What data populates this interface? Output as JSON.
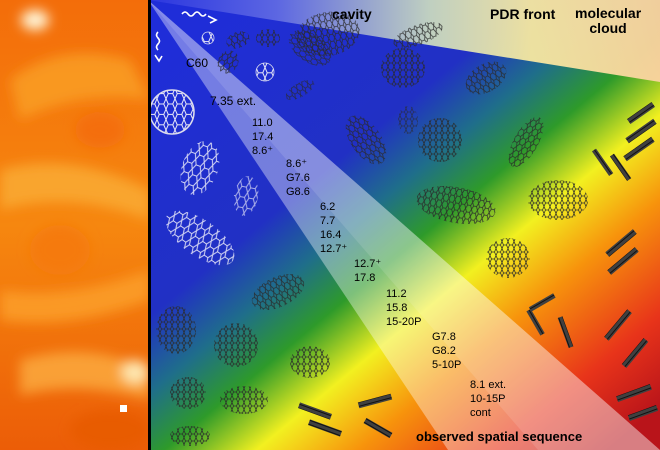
{
  "figure": {
    "headers": {
      "cavity": "cavity",
      "pdr_front": "PDR front",
      "molecular_cloud": "molecular\ncloud"
    },
    "footer": "observed spatial sequence",
    "species": {
      "c60": "C60",
      "ext_735": "7.35 ext."
    },
    "bands": [
      [
        "11.0",
        "17.4",
        "8.6⁺"
      ],
      [
        "8.6⁺",
        "G7.6",
        "G8.6"
      ],
      [
        "6.2",
        "7.7",
        "16.4",
        "12.7⁺"
      ],
      [
        "12.7⁺",
        "17.8"
      ],
      [
        "11.2",
        "15.8",
        "15-20P"
      ],
      [
        "G7.8",
        "G8.2",
        "5-10P"
      ],
      [
        "8.1 ext.",
        "10-15P",
        "cont"
      ]
    ],
    "colors": {
      "cavity_blue": "#1a2fe0",
      "green": "#2e9a2a",
      "yellow": "#f2f020",
      "orange": "#f7930c",
      "red": "#e01b12",
      "photo_orange": "#f6880e"
    }
  }
}
